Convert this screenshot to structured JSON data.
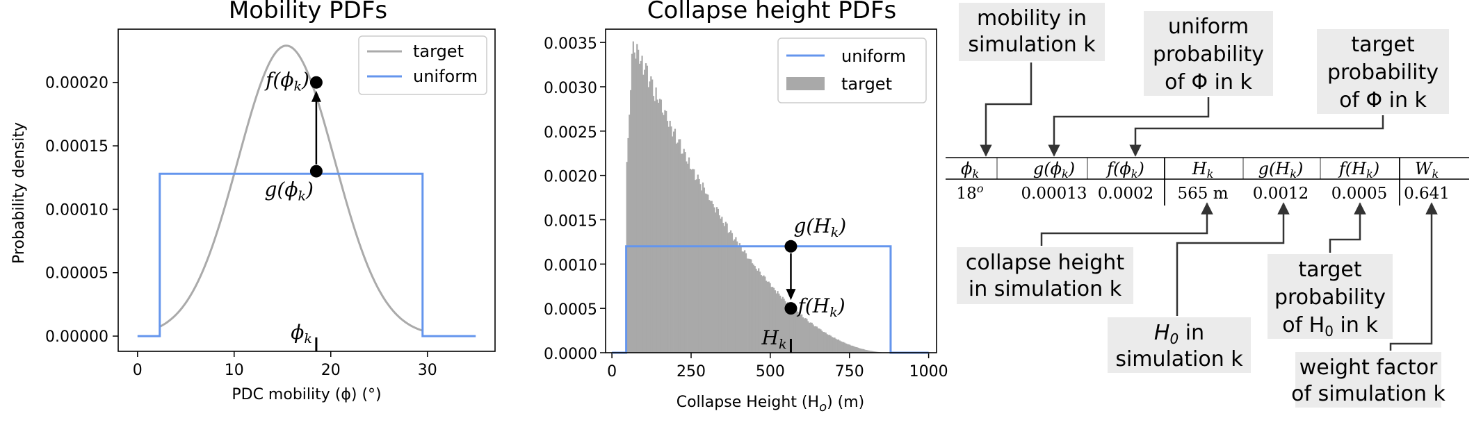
{
  "chart_data": [
    {
      "type": "line",
      "title": "Mobility PDFs",
      "xlabel": "PDC mobility (ϕ) (°)",
      "ylabel": "Probability density",
      "xlim": [
        -2,
        37
      ],
      "ylim": [
        -1.2e-05,
        0.000242
      ],
      "xticks": [
        "0",
        "10",
        "20",
        "30"
      ],
      "yticks": [
        "0.00000",
        "0.00005",
        "0.00010",
        "0.00015",
        "0.00020"
      ],
      "legend": {
        "position": "top-right",
        "entries": [
          "target",
          "uniform"
        ]
      },
      "series": [
        {
          "name": "target",
          "color": "#aaaaaa",
          "kind": "gaussian",
          "mean": 15.4,
          "sd": 5.0,
          "peak": 0.000229,
          "x_range": [
            2.3,
            29.5
          ]
        },
        {
          "name": "uniform",
          "color": "#6495ed",
          "x": [
            0,
            2.3,
            2.3,
            29.5,
            29.5,
            35
          ],
          "y": [
            0,
            0,
            0.000128,
            0.000128,
            0,
            0
          ]
        }
      ],
      "annotations": {
        "phi_k": 18.5,
        "g_value": 0.00013,
        "f_value": 0.0002,
        "f_label": "f(ϕ",
        "g_label": "g(ϕ",
        "sub": "k",
        "close": ")",
        "x_marker_label": "ϕ"
      }
    },
    {
      "type": "bar",
      "title": "Collapse height PDFs",
      "xlabel": "Collapse Height (H",
      "xlabel_sub": "o",
      "xlabel_end": ") (m)",
      "ylabel": "",
      "xlim": [
        -20,
        1025
      ],
      "ylim": [
        0,
        0.00365
      ],
      "xticks": [
        "0",
        "250",
        "500",
        "750",
        "1000"
      ],
      "yticks": [
        "0.0000",
        "0.0005",
        "0.0010",
        "0.0015",
        "0.0020",
        "0.0025",
        "0.0030",
        "0.0035"
      ],
      "legend": {
        "position": "top-right",
        "entries": [
          "uniform",
          "target"
        ]
      },
      "series": [
        {
          "name": "target",
          "color": "#a9a9a9",
          "kind": "histogram",
          "x_start": 45,
          "x_peak": 65,
          "x_end": 880,
          "peak": 0.00352
        },
        {
          "name": "uniform",
          "color": "#6495ed",
          "x": [
            0,
            45,
            45,
            880,
            880,
            1000
          ],
          "y": [
            0,
            0,
            0.0012,
            0.0012,
            0,
            0
          ]
        }
      ],
      "annotations": {
        "H_k": 565,
        "g_value": 0.0012,
        "f_value": 0.0005,
        "g_label": "g(H",
        "f_label": "f(H",
        "sub": "k",
        "close": ")",
        "x_marker_label": "H"
      }
    }
  ],
  "table": {
    "headers": [
      {
        "main": "ϕ",
        "sub": "k",
        "pre": "",
        "post": ""
      },
      {
        "pre": "g(",
        "main": "ϕ",
        "sub": "k",
        "post": ")"
      },
      {
        "pre": "f(",
        "main": "ϕ",
        "sub": "k",
        "post": ")"
      },
      {
        "pre": "",
        "main": "H",
        "sub": "k",
        "post": ""
      },
      {
        "pre": "g(",
        "main": "H",
        "sub": "k",
        "post": ")"
      },
      {
        "pre": "f(",
        "main": "H",
        "sub": "k",
        "post": ")"
      },
      {
        "pre": "",
        "main": "W",
        "sub": "k",
        "post": ""
      }
    ],
    "values": [
      "18",
      "0.00013",
      "0.0002",
      "565 m",
      "0.0012",
      "0.0005",
      "0.641"
    ],
    "first_value_sup": "o"
  },
  "callouts": {
    "mobility": [
      "mobility in",
      "simulation k"
    ],
    "uniform_prob": [
      "uniform",
      "probability",
      "of Φ in k"
    ],
    "target_prob_phi": [
      "target",
      "probability",
      "of Φ in k"
    ],
    "collapse_height": [
      "collapse height",
      "in simulation k"
    ],
    "h0": [
      "H",
      "0",
      " in",
      "simulation k"
    ],
    "target_prob_h0": [
      "target",
      "probability",
      "of H",
      "0",
      " in k"
    ],
    "weight": [
      "weight factor",
      "of simulation k"
    ]
  }
}
